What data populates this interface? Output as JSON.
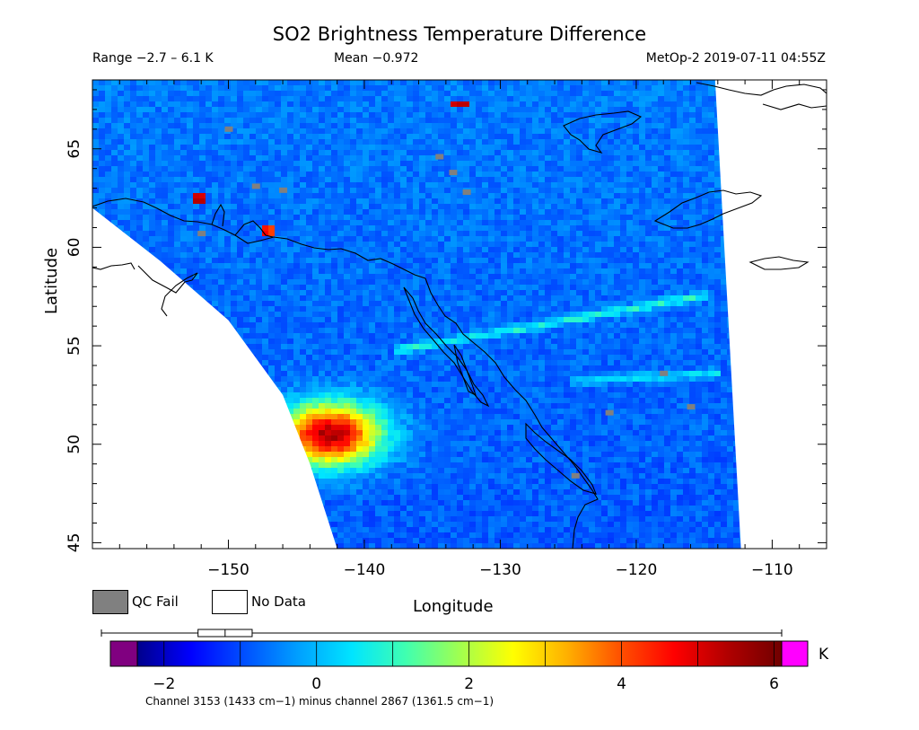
{
  "header": {
    "title": "SO2 Brightness Temperature Difference",
    "range": "Range −2.7 – 6.1 K",
    "mean": "Mean −0.972",
    "satellite": "MetOp-2 2019-07-11 04:55Z"
  },
  "legend": {
    "qc_fail_label": "QC Fail",
    "no_data_label": "No Data",
    "qc_fail_color": "#808080",
    "no_data_color": "#ffffff"
  },
  "colorbar": {
    "unit": "K",
    "min": -2.7,
    "max": 6.1,
    "ticks": [
      "−2",
      "0",
      "2",
      "4",
      "6"
    ],
    "tick_values": [
      -2,
      0,
      2,
      4,
      6
    ],
    "underflow_color": "#800080",
    "overflow_color": "#ff00ff",
    "colors": [
      "#00008b",
      "#0000ff",
      "#0050ff",
      "#00a0ff",
      "#00e5ff",
      "#40ffb0",
      "#a0ff50",
      "#ffff00",
      "#ffb000",
      "#ff5000",
      "#ff0000",
      "#b00000",
      "#700000"
    ],
    "boxplot": {
      "whisker_low": -2.7,
      "q1": -1.45,
      "median": -1.1,
      "q3": -0.75,
      "whisker_high": 6.1
    }
  },
  "footer_note": "Channel 3153 (1433 cm−1) minus channel 2867 (1361.5 cm−1)",
  "chart_data": {
    "type": "heatmap",
    "title": "SO2 Brightness Temperature Difference",
    "xlabel": "Longitude",
    "ylabel": "Latitude",
    "xlim": [
      -160,
      -106
    ],
    "ylim": [
      44.7,
      68.5
    ],
    "xticks": [
      -150,
      -140,
      -130,
      -120,
      -110
    ],
    "xtick_labels": [
      "−150",
      "−140",
      "−130",
      "−120",
      "−110"
    ],
    "yticks": [
      45,
      50,
      55,
      60,
      65
    ],
    "ytick_labels": [
      "45",
      "50",
      "55",
      "60",
      "65"
    ],
    "value_unit": "K",
    "value_range": [
      -2.7,
      6.1
    ],
    "mean": -0.972,
    "background_value": -1.0,
    "swath_west_edge": [
      [
        -160,
        62
      ],
      [
        -155,
        59.3
      ],
      [
        -150,
        56.3
      ],
      [
        -146,
        52.5
      ],
      [
        -144,
        49
      ],
      [
        -142,
        44.7
      ]
    ],
    "swath_east_edge": [
      [
        -114.2,
        68.5
      ],
      [
        -112.3,
        44.7
      ]
    ],
    "features": [
      {
        "name": "SO2 plume",
        "lon": -142.5,
        "lat": 50.5,
        "peak": 5.5,
        "sigma_lon": 2.6,
        "sigma_lat": 1.1
      },
      {
        "name": "stripe",
        "lon_start": -138,
        "lat_start": 54.7,
        "lon_end": -114.5,
        "lat_end": 57.6,
        "value": 0.6
      },
      {
        "name": "stripe",
        "lon_start": -125,
        "lat_start": 53.2,
        "lon_end": -114,
        "lat_end": 53.6,
        "value": 0.2
      },
      {
        "name": "cell",
        "lon": -133,
        "lat": 67.2,
        "value": 5.4
      },
      {
        "name": "cell",
        "lon": -152,
        "lat": 62.5,
        "value": 5.0
      },
      {
        "name": "cell",
        "lon": -147,
        "lat": 60.8,
        "value": 4.4
      }
    ],
    "qc_fail_cells": [
      [
        -150,
        66
      ],
      [
        -134.5,
        64.6
      ],
      [
        -133.5,
        63.8
      ],
      [
        -148,
        63.1
      ],
      [
        -146,
        62.9
      ],
      [
        -132.5,
        62.8
      ],
      [
        -152,
        60.7
      ],
      [
        -118,
        53.6
      ],
      [
        -116,
        51.9
      ],
      [
        -122,
        51.6
      ],
      [
        -124.5,
        48.4
      ]
    ]
  }
}
